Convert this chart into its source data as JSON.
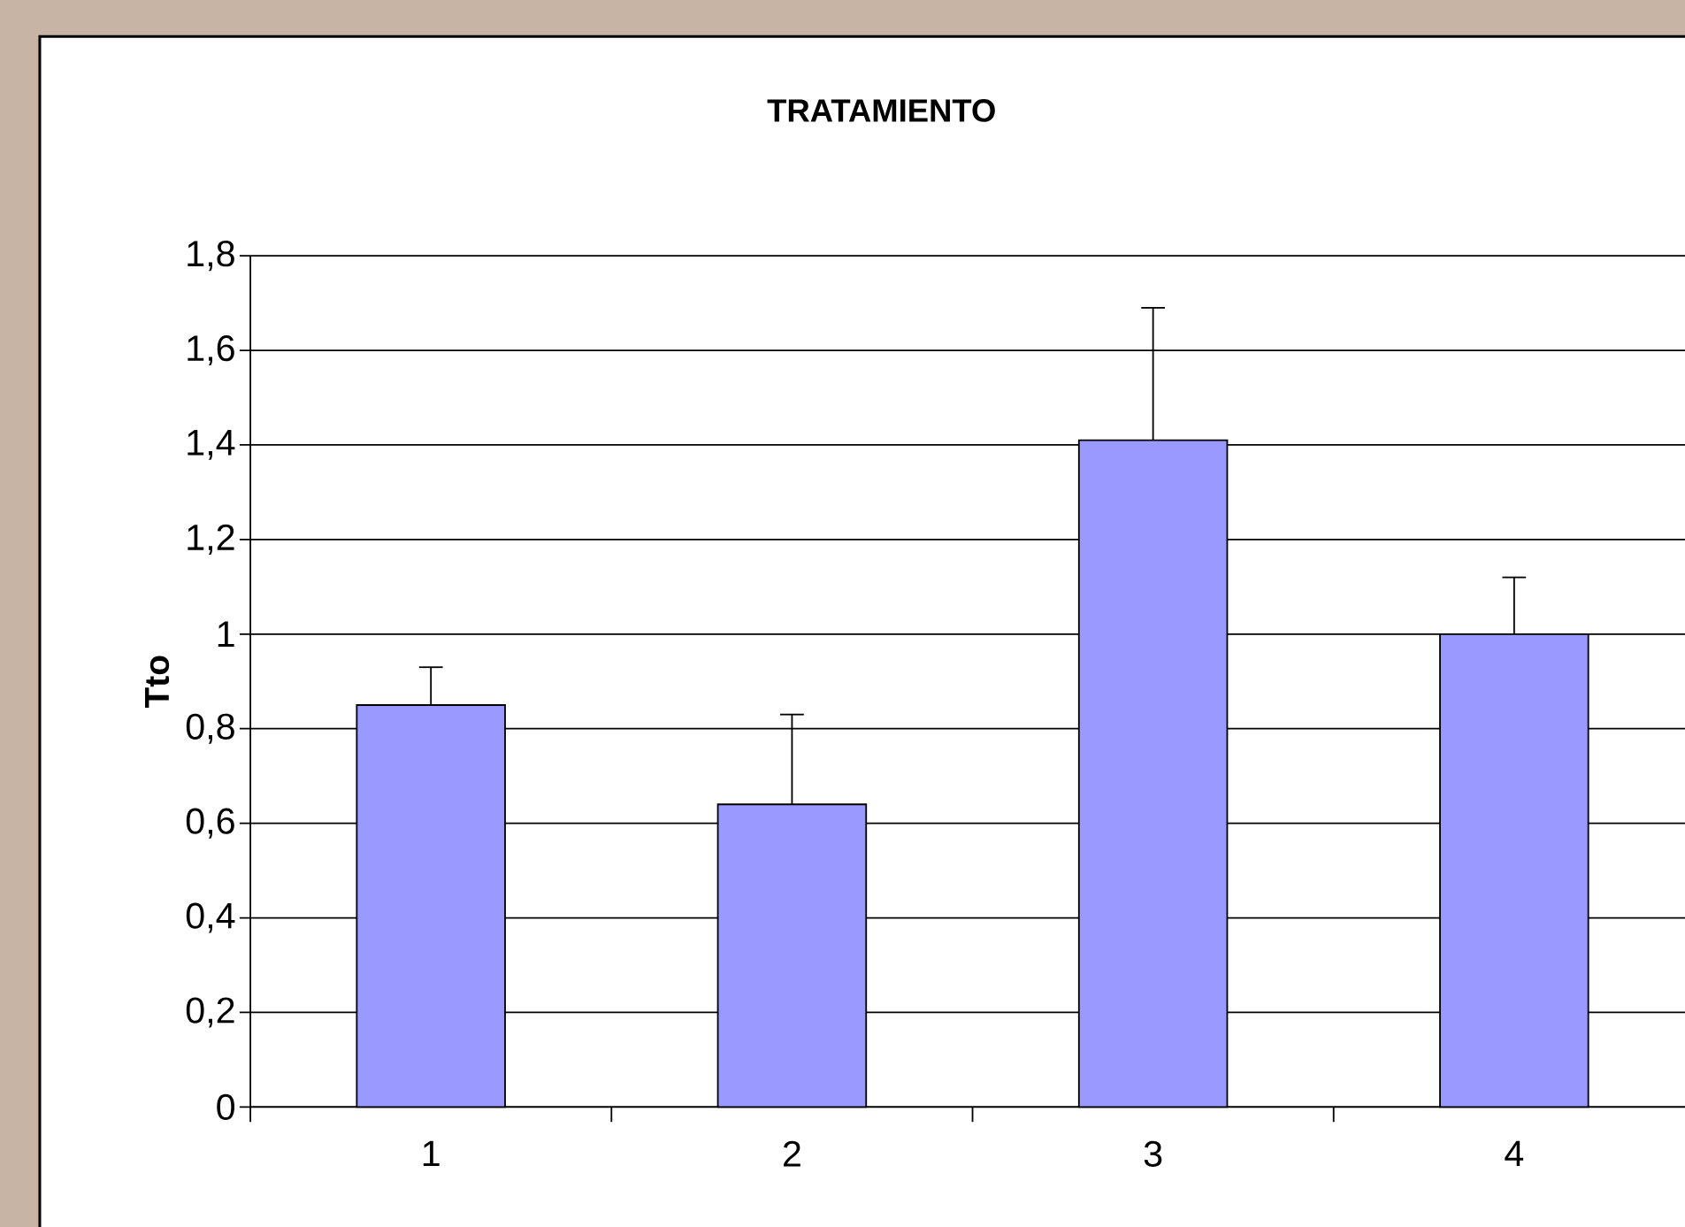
{
  "chart_data": {
    "type": "bar",
    "title": "TRATAMIENTO",
    "ylabel": "Tto",
    "categories": [
      "1",
      "2",
      "3",
      "4"
    ],
    "values": [
      0.85,
      0.64,
      1.41,
      1.0
    ],
    "errors": [
      [
        0.85,
        0.93
      ],
      [
        0.64,
        0.83
      ],
      [
        1.41,
        1.69
      ],
      [
        1.0,
        1.12
      ]
    ],
    "color": "#9999ff",
    "ylim": [
      0,
      1.8
    ],
    "yticks": [
      {
        "value": 0,
        "label": "0"
      },
      {
        "value": 0.2,
        "label": "0,2"
      },
      {
        "value": 0.4,
        "label": "0,4"
      },
      {
        "value": 0.6,
        "label": "0,6"
      },
      {
        "value": 0.8,
        "label": "0,8"
      },
      {
        "value": 1,
        "label": "1"
      },
      {
        "value": 1.2,
        "label": "1,2"
      },
      {
        "value": 1.4,
        "label": "1,4"
      },
      {
        "value": 1.6,
        "label": "1,6"
      },
      {
        "value": 1.8,
        "label": "1,8"
      }
    ],
    "grid": "y"
  }
}
